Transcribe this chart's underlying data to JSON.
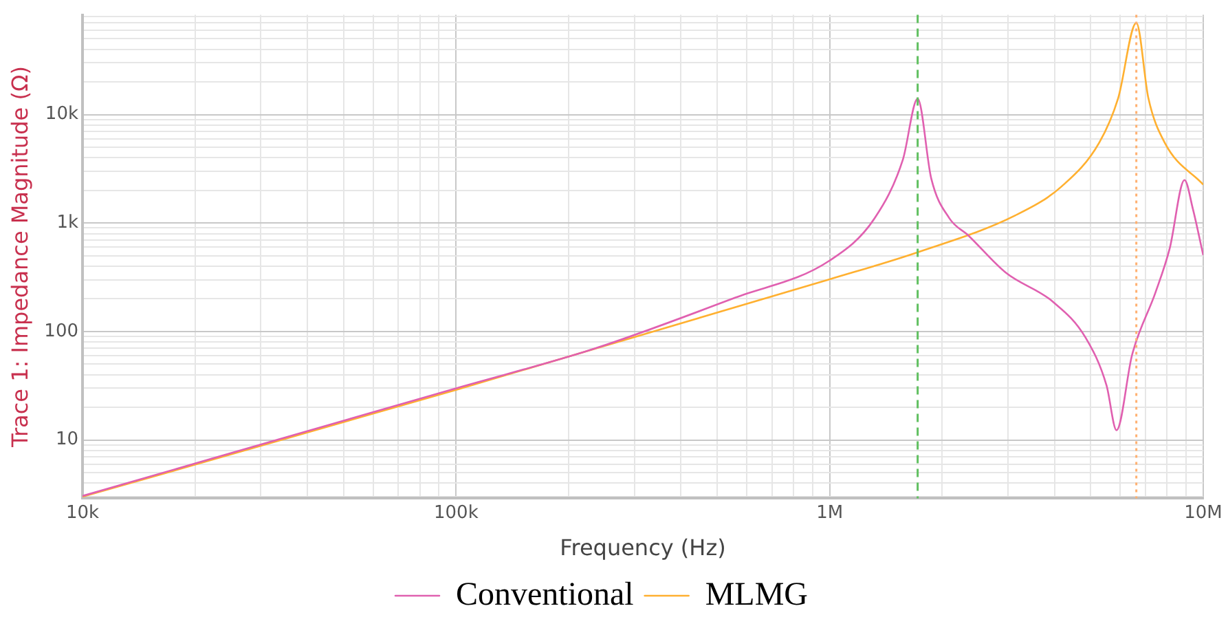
{
  "chart_data": {
    "type": "line",
    "xlabel": "Frequency (Hz)",
    "ylabel": "Trace 1: Impedance Magnitude (Ω)",
    "log": "xy",
    "grid": true,
    "legend": "bottom",
    "marker": "none",
    "line_style": "solid",
    "xlim": [
      10000,
      10000000
    ],
    "xticks": [
      {
        "value": 10000,
        "label": "10k"
      },
      {
        "value": 20000,
        "label": null
      },
      {
        "value": 30000,
        "label": null
      },
      {
        "value": 40000,
        "label": null
      },
      {
        "value": 50000,
        "label": null
      },
      {
        "value": 60000,
        "label": null
      },
      {
        "value": 70000,
        "label": null
      },
      {
        "value": 80000,
        "label": null
      },
      {
        "value": 90000,
        "label": null
      },
      {
        "value": 100000,
        "label": "100k"
      },
      {
        "value": 200000,
        "label": null
      },
      {
        "value": 300000,
        "label": null
      },
      {
        "value": 400000,
        "label": null
      },
      {
        "value": 500000,
        "label": null
      },
      {
        "value": 600000,
        "label": null
      },
      {
        "value": 700000,
        "label": null
      },
      {
        "value": 800000,
        "label": null
      },
      {
        "value": 900000,
        "label": null
      },
      {
        "value": 1000000,
        "label": "1M"
      },
      {
        "value": 2000000,
        "label": null
      },
      {
        "value": 3000000,
        "label": null
      },
      {
        "value": 4000000,
        "label": null
      },
      {
        "value": 5000000,
        "label": null
      },
      {
        "value": 6000000,
        "label": null
      },
      {
        "value": 7000000,
        "label": null
      },
      {
        "value": 8000000,
        "label": null
      },
      {
        "value": 9000000,
        "label": null
      },
      {
        "value": 10000000,
        "label": "10M"
      }
    ],
    "ylim": [
      2.9,
      83000
    ],
    "yticks": [
      {
        "value": 3,
        "label": null
      },
      {
        "value": 4,
        "label": null
      },
      {
        "value": 5,
        "label": null
      },
      {
        "value": 6,
        "label": null
      },
      {
        "value": 7,
        "label": null
      },
      {
        "value": 8,
        "label": null
      },
      {
        "value": 9,
        "label": null
      },
      10,
      {
        "value": 20,
        "label": null
      },
      {
        "value": 30,
        "label": null
      },
      {
        "value": 40,
        "label": null
      },
      {
        "value": 50,
        "label": null
      },
      {
        "value": 60,
        "label": null
      },
      {
        "value": 70,
        "label": null
      },
      {
        "value": 80,
        "label": null
      },
      {
        "value": 90,
        "label": null
      },
      100,
      {
        "value": 200,
        "label": null
      },
      {
        "value": 300,
        "label": null
      },
      {
        "value": 400,
        "label": null
      },
      {
        "value": 500,
        "label": null
      },
      {
        "value": 600,
        "label": null
      },
      {
        "value": 700,
        "label": null
      },
      {
        "value": 800,
        "label": null
      },
      {
        "value": 900,
        "label": null
      },
      {
        "value": 1000,
        "label": "1k"
      },
      {
        "value": 2000,
        "label": null
      },
      {
        "value": 3000,
        "label": null
      },
      {
        "value": 4000,
        "label": null
      },
      {
        "value": 5000,
        "label": null
      },
      {
        "value": 6000,
        "label": null
      },
      {
        "value": 7000,
        "label": null
      },
      {
        "value": 8000,
        "label": null
      },
      {
        "value": 9000,
        "label": null
      },
      {
        "value": 10000,
        "label": "10k"
      },
      {
        "value": 20000,
        "label": null
      },
      {
        "value": 30000,
        "label": null
      },
      {
        "value": 40000,
        "label": null
      },
      {
        "value": 50000,
        "label": null
      },
      {
        "value": 60000,
        "label": null
      },
      {
        "value": 70000,
        "label": null
      },
      {
        "value": 80000,
        "label": null
      }
    ],
    "series": [
      {
        "name": "Conventional",
        "color": "#e060b0",
        "x": [
          10000,
          100000,
          236000,
          558000,
          1000000,
          1320000,
          1570000,
          1720000,
          1870000,
          2090000,
          2350000,
          2960000,
          3960000,
          4840000,
          5510000,
          5860000,
          6450000,
          7450000,
          8130000,
          8910000,
          9380000,
          10000000
        ],
        "values": [
          3.05,
          30,
          70,
          205,
          451,
          1110,
          3840,
          14000,
          2580,
          1110,
          769,
          349,
          188,
          88,
          31.8,
          12.3,
          61,
          229,
          581,
          2490,
          1350,
          505
        ]
      },
      {
        "name": "MLMG",
        "color": "#ffb030",
        "x": [
          10000,
          100000,
          1000000,
          1720000,
          3140000,
          4180000,
          5270000,
          5920000,
          6620000,
          7130000,
          7880000,
          10000000
        ],
        "values": [
          3.0,
          29,
          303,
          538,
          1175,
          2180,
          5530,
          14200,
          70000,
          14200,
          5530,
          2260
        ]
      }
    ],
    "ref_lines": [
      {
        "axis": "x",
        "value": 1720000,
        "color": "#60c060",
        "line_style": "dashed"
      },
      {
        "axis": "x",
        "value": 6620000,
        "color": "#ffb070",
        "line_style": "dotted"
      }
    ]
  }
}
